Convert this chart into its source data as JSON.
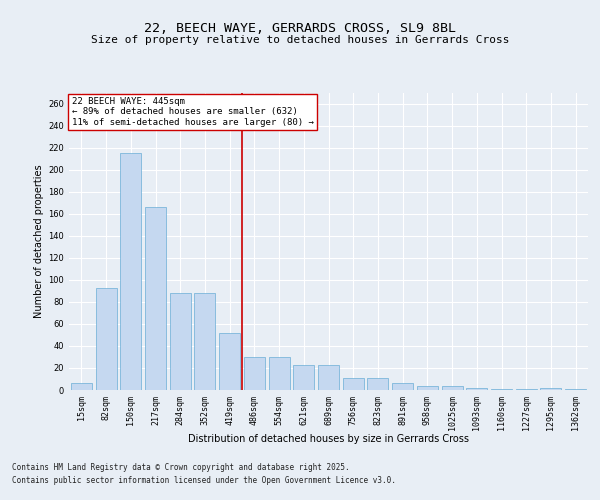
{
  "title1": "22, BEECH WAYE, GERRARDS CROSS, SL9 8BL",
  "title2": "Size of property relative to detached houses in Gerrards Cross",
  "xlabel": "Distribution of detached houses by size in Gerrards Cross",
  "ylabel": "Number of detached properties",
  "categories": [
    "15sqm",
    "82sqm",
    "150sqm",
    "217sqm",
    "284sqm",
    "352sqm",
    "419sqm",
    "486sqm",
    "554sqm",
    "621sqm",
    "689sqm",
    "756sqm",
    "823sqm",
    "891sqm",
    "958sqm",
    "1025sqm",
    "1093sqm",
    "1160sqm",
    "1227sqm",
    "1295sqm",
    "1362sqm"
  ],
  "values": [
    6,
    93,
    215,
    166,
    88,
    88,
    52,
    30,
    30,
    23,
    23,
    11,
    11,
    6,
    4,
    4,
    2,
    1,
    1,
    2,
    1
  ],
  "bar_color": "#c5d8f0",
  "bar_edge_color": "#6aaed6",
  "vline_index": 6.5,
  "vline_color": "#cc0000",
  "annotation_text": "22 BEECH WAYE: 445sqm\n← 89% of detached houses are smaller (632)\n11% of semi-detached houses are larger (80) →",
  "ylim": [
    0,
    270
  ],
  "yticks": [
    0,
    20,
    40,
    60,
    80,
    100,
    120,
    140,
    160,
    180,
    200,
    220,
    240,
    260
  ],
  "background_color": "#e8eef5",
  "plot_bg_color": "#e8eef5",
  "grid_color": "#ffffff",
  "footer1": "Contains HM Land Registry data © Crown copyright and database right 2025.",
  "footer2": "Contains public sector information licensed under the Open Government Licence v3.0.",
  "title_fontsize": 9.5,
  "subtitle_fontsize": 8,
  "axis_label_fontsize": 7,
  "tick_fontsize": 6,
  "annotation_fontsize": 6.5,
  "footer_fontsize": 5.5
}
